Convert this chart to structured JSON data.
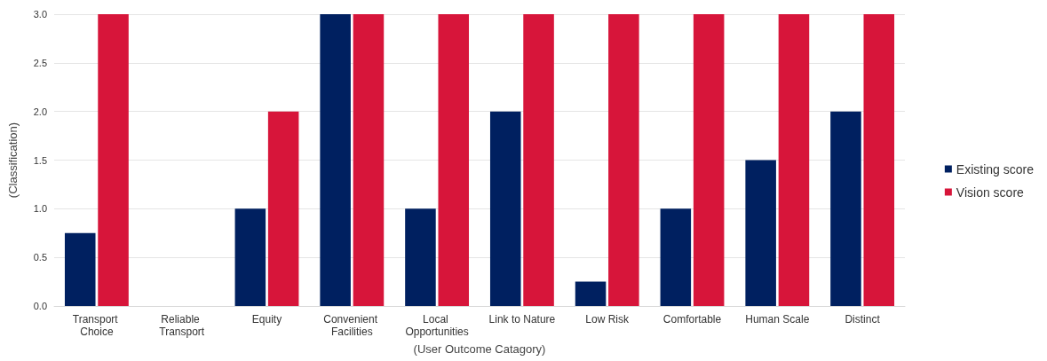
{
  "chart_data": {
    "type": "bar",
    "xlabel": "(User Outcome Catagory)",
    "ylabel": "(Classification)",
    "categories": [
      "Transport Choice",
      "Reliable Transport",
      "Equity",
      "Convenient Facilities",
      "Local Opportunities",
      "Link to Nature",
      "Low Risk",
      "Comfortable",
      "Human Scale",
      "Distinct"
    ],
    "series": [
      {
        "name": "Existing score",
        "color": "#002060",
        "values": [
          0.75,
          null,
          1,
          3,
          1,
          2,
          0.25,
          1,
          1.5,
          2
        ]
      },
      {
        "name": "Vision score",
        "color": "#d7153a",
        "values": [
          3,
          null,
          2,
          3,
          3,
          3,
          3,
          3,
          3,
          3
        ]
      }
    ],
    "ylim": [
      0,
      3
    ],
    "yticks": [
      {
        "value": 0,
        "label": "0.0"
      },
      {
        "value": 0.5,
        "label": "0.5"
      },
      {
        "value": 1,
        "label": "1.0"
      },
      {
        "value": 1.5,
        "label": "1.5"
      },
      {
        "value": 2,
        "label": "2.0"
      },
      {
        "value": 2.5,
        "label": "2.5"
      },
      {
        "value": 3,
        "label": "3.0"
      }
    ],
    "grid": "y",
    "legend": "right"
  }
}
